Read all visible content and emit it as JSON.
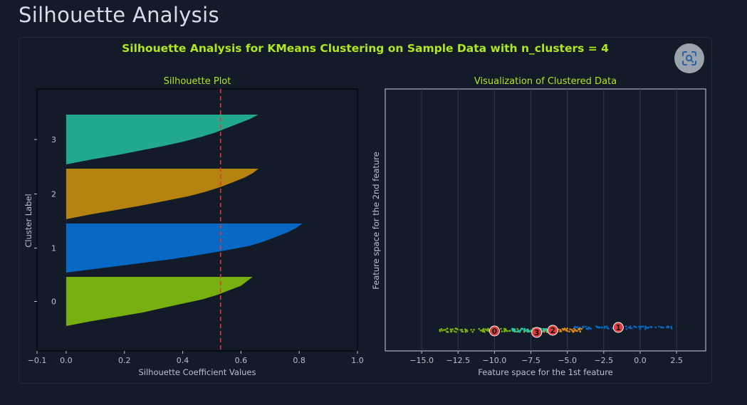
{
  "page": {
    "title": "Silhouette Analysis"
  },
  "colors": {
    "background": "#131b29",
    "title": "#aee81e",
    "cluster_0": "#78b00f",
    "cluster_1": "#0769c4",
    "cluster_2": "#b5830f",
    "cluster_3": "#22a98b",
    "average_line": "#e03a3a"
  },
  "chart_data": [
    {
      "type": "area",
      "suptitle": "Silhouette Analysis for KMeans Clustering on Sample Data with n_clusters = 4",
      "title": "Silhouette Plot",
      "xlabel": "Silhouette Coefficient Values",
      "ylabel": "Cluster Label",
      "xlim": [
        -0.1,
        1.0
      ],
      "xticks": [
        -0.1,
        0.0,
        0.2,
        0.4,
        0.6,
        0.8,
        1.0
      ],
      "xtick_labels": [
        "−0.1",
        "0.0",
        "0.2",
        "0.4",
        "0.6",
        "0.8",
        "1.0"
      ],
      "average_silhouette": 0.53,
      "grid": false,
      "series": [
        {
          "name": "0",
          "label": "0",
          "color": "#78b00f",
          "max": 0.64,
          "profile": [
            0.64,
            0.62,
            0.6,
            0.56,
            0.52,
            0.47,
            0.4,
            0.33,
            0.26,
            0.17,
            0.08,
            0.0
          ]
        },
        {
          "name": "1",
          "label": "1",
          "color": "#0769c4",
          "max": 0.81,
          "profile": [
            0.81,
            0.79,
            0.76,
            0.72,
            0.68,
            0.63,
            0.55,
            0.46,
            0.36,
            0.24,
            0.12,
            0.0
          ]
        },
        {
          "name": "2",
          "label": "2",
          "color": "#b5830f",
          "max": 0.66,
          "profile": [
            0.66,
            0.64,
            0.61,
            0.57,
            0.53,
            0.48,
            0.42,
            0.34,
            0.26,
            0.17,
            0.08,
            0.0
          ]
        },
        {
          "name": "3",
          "label": "3",
          "color": "#22a98b",
          "max": 0.66,
          "profile": [
            0.66,
            0.63,
            0.59,
            0.55,
            0.51,
            0.46,
            0.4,
            0.33,
            0.25,
            0.17,
            0.08,
            0.0
          ]
        }
      ]
    },
    {
      "type": "scatter",
      "title": "Visualization of Clustered Data",
      "xlabel": "Feature space for the 1st feature",
      "ylabel": "Feature space for the 2nd feature",
      "xlim": [
        -17.5,
        4.5
      ],
      "xticks": [
        -15.0,
        -12.5,
        -10.0,
        -7.5,
        -5.0,
        -2.5,
        0.0,
        2.5
      ],
      "xtick_labels": [
        "−15.0",
        "−12.5",
        "−10.0",
        "−7.5",
        "−5.0",
        "−2.5",
        "0.0",
        "2.5"
      ],
      "grid": true,
      "series": [
        {
          "name": "0",
          "color": "#78b00f",
          "x_range": [
            -13.8,
            -7.0
          ],
          "count": 90
        },
        {
          "name": "1",
          "color": "#0769c4",
          "x_range": [
            -4.5,
            2.2
          ],
          "count": 80
        },
        {
          "name": "2",
          "color": "#e08a14",
          "x_range": [
            -7.4,
            -4.0
          ],
          "count": 60
        },
        {
          "name": "3",
          "color": "#22c9b0",
          "x_range": [
            -9.0,
            -5.8
          ],
          "count": 45
        }
      ],
      "centers": [
        {
          "label": "0",
          "x": -10.0
        },
        {
          "label": "1",
          "x": -1.5
        },
        {
          "label": "2",
          "x": -6.0
        },
        {
          "label": "3",
          "x": -7.1
        }
      ]
    }
  ]
}
